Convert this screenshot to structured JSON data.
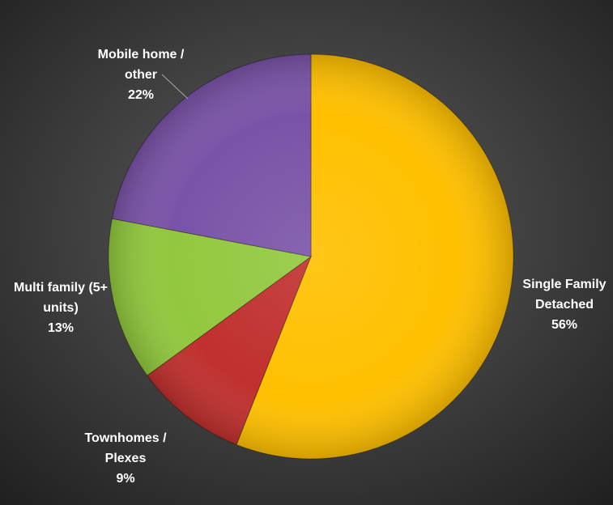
{
  "chart_data": {
    "type": "pie",
    "title": "",
    "slices": [
      {
        "label_lines": [
          "Single Family",
          "Detached"
        ],
        "percent_label": "56%",
        "value": 56,
        "color": "#FFC000"
      },
      {
        "label_lines": [
          "Townhomes /",
          "Plexes"
        ],
        "percent_label": "9%",
        "value": 9,
        "color": "#C0302E"
      },
      {
        "label_lines": [
          "Multi family (5+",
          "units)"
        ],
        "percent_label": "13%",
        "value": 13,
        "color": "#92C83E"
      },
      {
        "label_lines": [
          "Mobile home /",
          "other"
        ],
        "percent_label": "22%",
        "value": 22,
        "color": "#7A53A8"
      }
    ]
  },
  "colors": {
    "background_center": "#5f5f5f",
    "background_edge": "#1f1f1f",
    "label_text": "#ffffff",
    "leader_line": "#a6a6a6"
  }
}
